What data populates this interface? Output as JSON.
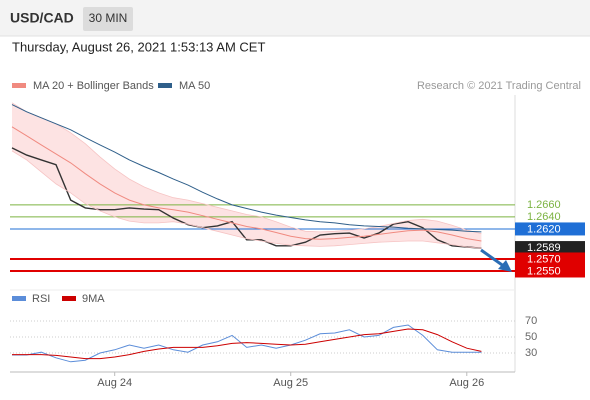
{
  "header": {
    "symbol": "USD/CAD",
    "timeframe": "30 MIN",
    "datetime": "Thursday, August 26, 2021 1:53:13 AM CET",
    "attribution": "Research © 2021 Trading Central"
  },
  "chart_data": [
    {
      "type": "line",
      "ylim": [
        1.2535,
        1.2843
      ],
      "series": [
        {
          "color": "#333333",
          "values": [
            1.2755,
            1.2743,
            1.2735,
            1.2727,
            1.2668,
            1.2655,
            1.2652,
            1.2652,
            1.2655,
            1.2653,
            1.2652,
            1.2638,
            1.2627,
            1.2622,
            1.2625,
            1.2632,
            1.2602,
            1.2602,
            1.2592,
            1.2592,
            1.2598,
            1.261,
            1.2612,
            1.2613,
            1.2605,
            1.2613,
            1.2628,
            1.2632,
            1.2622,
            1.2602,
            1.2592,
            1.259,
            1.2588
          ]
        },
        {
          "name": "MA 20 + Bollinger Bands",
          "color": "#f08a80",
          "band_color": "#fde3e3",
          "values": [
            1.279,
            1.2775,
            1.276,
            1.2745,
            1.273,
            1.2712,
            1.2695,
            1.268,
            1.2668,
            1.266,
            1.2655,
            1.2652,
            1.2648,
            1.2642,
            1.2636,
            1.263,
            1.2624,
            1.262,
            1.2614,
            1.2608,
            1.2604,
            1.2603,
            1.2604,
            1.2606,
            1.2608,
            1.2611,
            1.2614,
            1.2617,
            1.2618,
            1.2615,
            1.261,
            1.2604,
            1.26
          ],
          "upper": [
            1.283,
            1.2815,
            1.2805,
            1.2795,
            1.278,
            1.2762,
            1.274,
            1.272,
            1.2703,
            1.269,
            1.268,
            1.2672,
            1.2668,
            1.2662,
            1.2656,
            1.265,
            1.2644,
            1.264,
            1.2632,
            1.2623,
            1.2616,
            1.2615,
            1.2616,
            1.2618,
            1.262,
            1.2624,
            1.2629,
            1.2634,
            1.2636,
            1.2633,
            1.2626,
            1.2618,
            1.2612
          ],
          "lower": [
            1.275,
            1.2735,
            1.2715,
            1.2695,
            1.268,
            1.2662,
            1.265,
            1.264,
            1.2633,
            1.263,
            1.263,
            1.2632,
            1.2628,
            1.2622,
            1.2616,
            1.261,
            1.2604,
            1.26,
            1.2596,
            1.2593,
            1.2592,
            1.2591,
            1.2592,
            1.2594,
            1.2596,
            1.2598,
            1.2599,
            1.26,
            1.26,
            1.2597,
            1.2594,
            1.259,
            1.2588
          ]
        },
        {
          "name": "MA 50",
          "color": "#2f5f8a",
          "values": [
            1.2827,
            1.2815,
            1.2805,
            1.2795,
            1.2785,
            1.2772,
            1.276,
            1.2748,
            1.2735,
            1.2724,
            1.2714,
            1.2703,
            1.2693,
            1.2681,
            1.267,
            1.266,
            1.2654,
            1.2648,
            1.2643,
            1.2639,
            1.2635,
            1.2632,
            1.263,
            1.2627,
            1.2625,
            1.2624,
            1.2623,
            1.2621,
            1.262,
            1.2619,
            1.2618,
            1.2616,
            1.2615
          ]
        }
      ],
      "levels": [
        {
          "value": 1.266,
          "label": "1.2660",
          "color": "#7cb342",
          "boxed": false,
          "line_width": 1
        },
        {
          "value": 1.264,
          "label": "1.2640",
          "color": "#7cb342",
          "boxed": false,
          "line_width": 1
        },
        {
          "value": 1.262,
          "label": "1.2620",
          "color": "#1f6fd6",
          "boxed": true,
          "line_width": 1
        },
        {
          "value": 1.2589,
          "label": "1.2589",
          "color": "#222222",
          "boxed": true,
          "line_width": 0
        },
        {
          "value": 1.257,
          "label": "1.2570",
          "color": "#e00000",
          "boxed": true,
          "line_width": 2
        },
        {
          "value": 1.255,
          "label": "1.2550",
          "color": "#e00000",
          "boxed": true,
          "line_width": 2
        }
      ]
    },
    {
      "type": "line",
      "ylim": [
        5,
        95
      ],
      "yticks": [
        30,
        50,
        70
      ],
      "grid": true,
      "categories": [
        null,
        null,
        null,
        null,
        null,
        null,
        null,
        "Aug 24",
        null,
        null,
        null,
        null,
        null,
        null,
        null,
        null,
        null,
        null,
        null,
        "Aug 25",
        null,
        null,
        null,
        null,
        null,
        null,
        null,
        null,
        null,
        null,
        null,
        "Aug 26",
        null
      ],
      "series": [
        {
          "name": "RSI",
          "color": "#5b8dd9",
          "values": [
            27.5,
            27.5,
            31,
            24,
            19,
            21,
            30,
            34,
            40,
            36,
            40,
            34,
            31,
            40,
            44,
            52,
            37,
            40,
            36,
            40,
            46,
            54,
            55,
            59,
            50,
            52,
            62,
            65,
            52,
            34,
            31,
            31,
            31
          ]
        },
        {
          "name": "9MA",
          "color": "#cc0000",
          "values": [
            28,
            28,
            28,
            27,
            25,
            23,
            23,
            25,
            28,
            32,
            35,
            37,
            37,
            37,
            39,
            42,
            43,
            42,
            41,
            40,
            41,
            44,
            47,
            50,
            53,
            54,
            57,
            60,
            59,
            53,
            44,
            36,
            32
          ]
        }
      ]
    }
  ]
}
